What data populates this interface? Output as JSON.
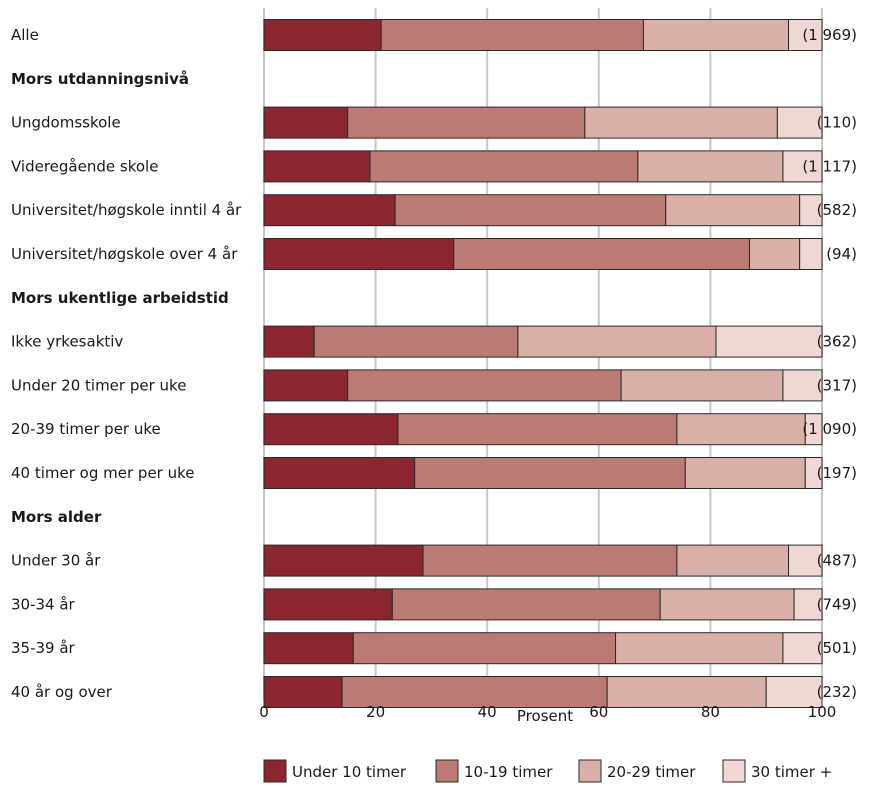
{
  "chart_data": {
    "type": "bar",
    "orientation": "horizontal",
    "stacked": true,
    "title": "",
    "xlabel": "Prosent",
    "ylabel": "",
    "xlim": [
      0,
      100
    ],
    "xticks": [
      0,
      20,
      40,
      60,
      80,
      100
    ],
    "grid": true,
    "legend_position": "bottom",
    "series": [
      {
        "name": "Under 10 timer",
        "color": "#8b2630"
      },
      {
        "name": "10-19 timer",
        "color": "#bb7a74"
      },
      {
        "name": "20-29 timer",
        "color": "#d9b0a8"
      },
      {
        "name": "30 timer +",
        "color": "#efd8d4"
      }
    ],
    "rows": [
      {
        "label": "Alle",
        "kind": "bar",
        "values": [
          21,
          47,
          26,
          6
        ],
        "count": "(1 969)"
      },
      {
        "label": "Mors utdanningsnivå",
        "kind": "group"
      },
      {
        "label": "Ungdomsskole",
        "kind": "bar",
        "values": [
          15,
          42.5,
          34.5,
          8
        ],
        "count": "(110)"
      },
      {
        "label": "Videregående skole",
        "kind": "bar",
        "values": [
          19,
          48,
          26,
          7
        ],
        "count": "(1 117)"
      },
      {
        "label": "Universitet/høgskole inntil 4 år",
        "kind": "bar",
        "values": [
          23.5,
          48.5,
          24,
          4
        ],
        "count": "(582)"
      },
      {
        "label": "Universitet/høgskole over 4 år",
        "kind": "bar",
        "values": [
          34,
          53,
          9,
          4
        ],
        "count": "(94)"
      },
      {
        "label": "Mors ukentlige arbeidstid",
        "kind": "group"
      },
      {
        "label": "Ikke yrkesaktiv",
        "kind": "bar",
        "values": [
          9,
          36.5,
          35.5,
          19
        ],
        "count": "(362)"
      },
      {
        "label": "Under 20 timer per uke",
        "kind": "bar",
        "values": [
          15,
          49,
          29,
          7
        ],
        "count": "(317)"
      },
      {
        "label": "20-39 timer per uke",
        "kind": "bar",
        "values": [
          24,
          50,
          23,
          3
        ],
        "count": "(1 090)"
      },
      {
        "label": "40 timer og mer per uke",
        "kind": "bar",
        "values": [
          27,
          48.5,
          21.5,
          3
        ],
        "count": "(197)"
      },
      {
        "label": "Mors alder",
        "kind": "group"
      },
      {
        "label": "Under 30 år",
        "kind": "bar",
        "values": [
          28.5,
          45.5,
          20,
          6
        ],
        "count": "(487)"
      },
      {
        "label": "30-34 år",
        "kind": "bar",
        "values": [
          23,
          48,
          24,
          5
        ],
        "count": "(749)"
      },
      {
        "label": "35-39 år",
        "kind": "bar",
        "values": [
          16,
          47,
          30,
          7
        ],
        "count": "(501)"
      },
      {
        "label": "40 år og over",
        "kind": "bar",
        "values": [
          14,
          47.5,
          28.5,
          10
        ],
        "count": "(232)"
      }
    ]
  }
}
